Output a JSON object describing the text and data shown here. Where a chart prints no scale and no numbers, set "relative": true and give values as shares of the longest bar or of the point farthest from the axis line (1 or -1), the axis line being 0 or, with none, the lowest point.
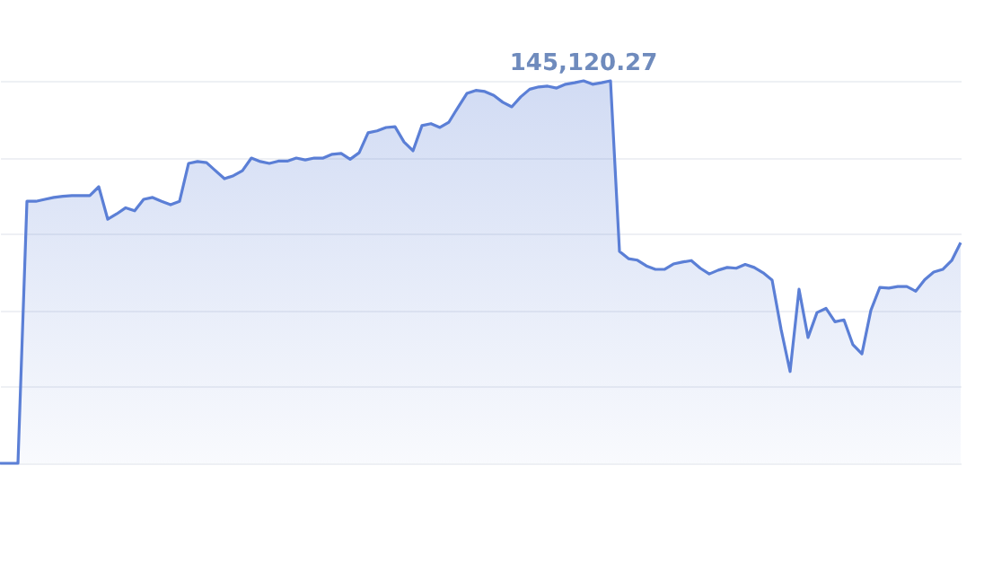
{
  "chart_data": {
    "type": "area",
    "relative": true,
    "grid": "y",
    "categories": [
      null,
      null,
      null,
      null,
      null,
      null,
      null,
      null,
      null,
      null,
      null,
      null,
      null,
      null,
      null,
      null,
      null,
      null,
      null,
      null,
      null,
      null,
      null,
      null,
      null,
      null,
      null,
      null,
      null,
      null,
      null,
      null,
      null,
      null,
      null,
      null,
      null,
      null,
      null,
      null,
      null,
      null,
      null,
      null,
      null,
      null,
      null,
      null,
      null,
      null,
      null,
      null,
      null,
      null,
      null,
      null,
      null,
      null,
      null,
      null,
      null,
      null,
      null,
      null,
      null,
      null,
      null,
      null,
      null,
      null,
      null,
      null,
      null,
      null,
      null,
      null,
      null,
      null,
      null,
      null,
      null,
      null,
      null,
      null,
      null,
      null,
      null,
      null,
      null,
      null,
      null,
      null,
      null,
      null,
      null,
      null,
      null,
      null,
      null,
      null,
      null,
      null,
      null,
      null,
      null,
      null,
      null,
      null
    ],
    "series": [
      {
        "color": "#5b7fd6",
        "values": [
          0,
          0,
          0,
          0.685,
          0.685,
          0.69,
          0.695,
          0.698,
          0.7,
          0.7,
          0.7,
          0.723,
          0.638,
          0.652,
          0.668,
          0.66,
          0.69,
          0.695,
          0.685,
          0.676,
          0.685,
          0.784,
          0.789,
          0.786,
          0.765,
          0.744,
          0.752,
          0.765,
          0.798,
          0.789,
          0.784,
          0.79,
          0.79,
          0.798,
          0.793,
          0.798,
          0.798,
          0.808,
          0.81,
          0.795,
          0.812,
          0.864,
          0.869,
          0.878,
          0.88,
          0.84,
          0.817,
          0.883,
          0.888,
          0.878,
          0.892,
          0.93,
          0.967,
          0.975,
          0.972,
          0.962,
          0.944,
          0.932,
          0.958,
          0.978,
          0.984,
          0.986,
          0.981,
          0.991,
          0.995,
          1.0,
          0.991,
          0.995,
          1.0,
          0.554,
          0.535,
          0.531,
          0.516,
          0.507,
          0.507,
          0.521,
          0.526,
          0.53,
          0.51,
          0.495,
          0.505,
          0.512,
          0.51,
          0.52,
          0.512,
          0.498,
          0.479,
          0.35,
          0.24,
          0.455,
          0.329,
          0.394,
          0.405,
          0.37,
          0.375,
          0.31,
          0.286,
          0.4,
          0.46,
          0.458,
          0.462,
          0.462,
          0.45,
          0.48,
          0.5,
          0.507,
          0.53,
          0.577
        ]
      }
    ],
    "annotations": [
      {
        "text": "145,120.27",
        "y": 1.0
      }
    ]
  }
}
